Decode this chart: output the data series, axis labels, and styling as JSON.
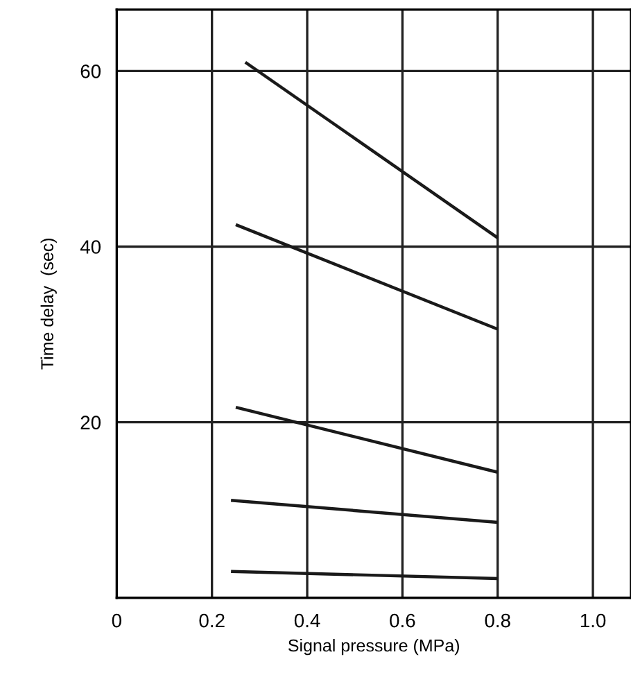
{
  "chart_data": {
    "type": "line",
    "xlabel": "Signal pressure (MPa)",
    "ylabel": "Time delay  (sec)",
    "series": [
      {
        "color": "#1a1a1a",
        "x": [
          0.27,
          0.8
        ],
        "values": [
          61,
          41
        ]
      },
      {
        "color": "#1a1a1a",
        "x": [
          0.25,
          0.8
        ],
        "values": [
          42.5,
          30.6
        ]
      },
      {
        "color": "#1a1a1a",
        "x": [
          0.25,
          0.8
        ],
        "values": [
          21.7,
          14.3
        ]
      },
      {
        "color": "#1a1a1a",
        "x": [
          0.24,
          0.8
        ],
        "values": [
          11.1,
          8.6
        ]
      },
      {
        "color": "#1a1a1a",
        "x": [
          0.24,
          0.8
        ],
        "values": [
          3.0,
          2.2
        ]
      }
    ],
    "xlim": [
      0,
      1.08
    ],
    "ylim": [
      0,
      67
    ],
    "xticks": [
      0,
      0.2,
      0.4,
      0.6,
      0.8,
      {
        "value": 1.0,
        "label": "1.0"
      }
    ],
    "yticks": [
      20,
      40,
      60
    ],
    "grid": true,
    "legend": false,
    "marker": "none",
    "line_style": "solid"
  }
}
